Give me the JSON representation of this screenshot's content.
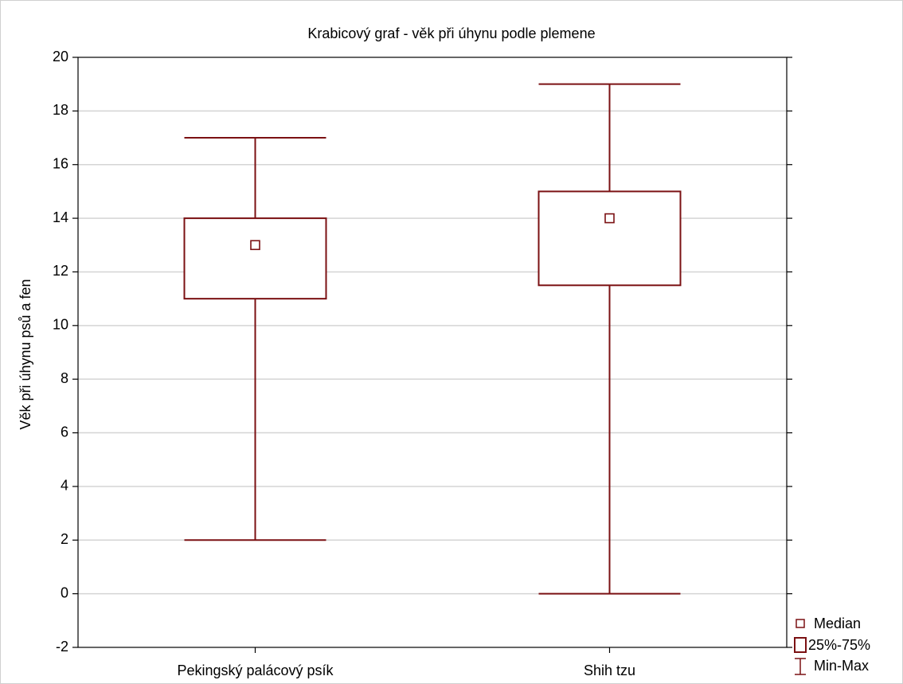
{
  "chart_data": {
    "type": "box",
    "title": "Krabicový graf - věk při úhynu podle plemene",
    "y_label": "Věk při úhynu psů a fen",
    "categories": [
      "Pekingský palácový psík",
      "Shih tzu"
    ],
    "min": [
      2,
      0
    ],
    "q1": [
      11,
      11.5
    ],
    "median": [
      13,
      14
    ],
    "q3": [
      14,
      15
    ],
    "max": [
      17,
      19
    ],
    "color": "#7b1113",
    "ylim": [
      -2,
      20
    ],
    "yticks": [
      -2,
      0,
      2,
      4,
      6,
      8,
      10,
      12,
      14,
      16,
      18,
      20
    ],
    "grid": true,
    "legend": {
      "median": "Median",
      "box": "25%-75%",
      "whiskers": "Min-Max"
    }
  }
}
